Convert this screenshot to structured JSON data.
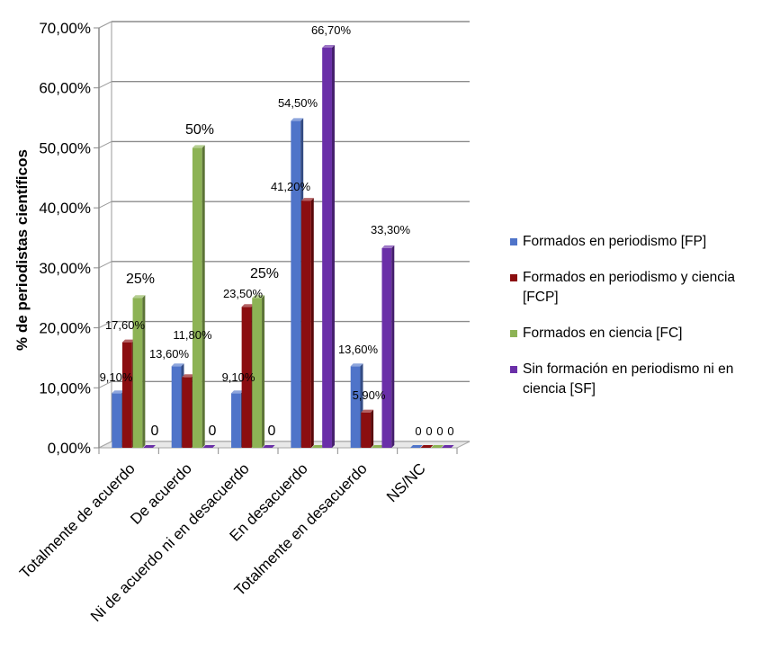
{
  "chart_data": {
    "type": "bar",
    "ylabel": "% de periodistas científicos",
    "ylim": [
      0,
      70
    ],
    "yticks": [
      "0,00%",
      "10,00%",
      "20,00%",
      "30,00%",
      "40,00%",
      "50,00%",
      "60,00%",
      "70,00%"
    ],
    "categories": [
      "Totalmente de acuerdo",
      "De acuerdo",
      "Ni de acuerdo ni en desacuerdo",
      "En desacuerdo",
      "Totalmente en desacuerdo",
      "NS/NC"
    ],
    "series": [
      {
        "name": "Formados en periodismo [FP]",
        "color": "#4F74C9",
        "values": [
          9.1,
          13.6,
          9.1,
          54.5,
          13.6,
          0
        ],
        "labels": [
          "9,10%",
          "13,60%",
          "9,10%",
          "54,50%",
          "13,60%",
          "0"
        ]
      },
      {
        "name": "Formados en periodismo y ciencia [FCP]",
        "color": "#8B0E10",
        "values": [
          17.6,
          11.8,
          23.5,
          41.2,
          5.9,
          0
        ],
        "labels": [
          "17,60%",
          "11,80%",
          "23,50%",
          "41,20%",
          "5,90%",
          "0"
        ]
      },
      {
        "name": "Formados en ciencia [FC]",
        "color": "#8DB355",
        "values": [
          25,
          50,
          25,
          0,
          0,
          0
        ],
        "labels": [
          "25%",
          "50%",
          "25%",
          "",
          "",
          "0"
        ]
      },
      {
        "name": "Sin formación en periodismo ni en ciencia [SF]",
        "color": "#6A2FA8",
        "values": [
          0,
          0,
          0,
          66.7,
          33.3,
          0
        ],
        "labels": [
          "0",
          "0",
          "0",
          "66,70%",
          "33,30%",
          "0"
        ]
      }
    ],
    "legend_position": "right",
    "grid": true
  }
}
